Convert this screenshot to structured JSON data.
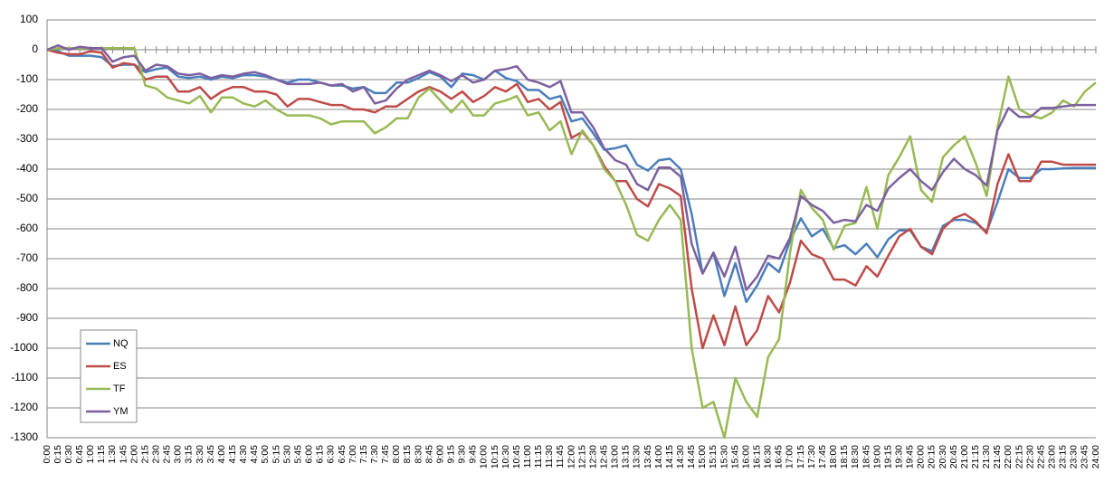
{
  "chart_data": {
    "type": "line",
    "categories": [
      "0:00",
      "0:15",
      "0:30",
      "0:45",
      "1:00",
      "1:15",
      "1:30",
      "1:45",
      "2:00",
      "2:15",
      "2:30",
      "2:45",
      "3:00",
      "3:15",
      "3:30",
      "3:45",
      "4:00",
      "4:15",
      "4:30",
      "4:45",
      "5:00",
      "5:15",
      "5:30",
      "5:45",
      "6:00",
      "6:15",
      "6:30",
      "6:45",
      "7:00",
      "7:15",
      "7:30",
      "7:45",
      "8:00",
      "8:15",
      "8:30",
      "8:45",
      "9:00",
      "9:15",
      "9:30",
      "9:45",
      "10:00",
      "10:15",
      "10:30",
      "10:45",
      "11:00",
      "11:15",
      "11:30",
      "11:45",
      "12:00",
      "12:15",
      "12:30",
      "12:45",
      "13:00",
      "13:15",
      "13:30",
      "13:45",
      "14:00",
      "14:15",
      "14:30",
      "14:45",
      "15:00",
      "15:15",
      "15:30",
      "15:45",
      "16:00",
      "16:15",
      "16:30",
      "16:45",
      "17:00",
      "17:15",
      "17:30",
      "17:45",
      "18:00",
      "18:15",
      "18:30",
      "18:45",
      "19:00",
      "19:15",
      "19:30",
      "19:45",
      "20:00",
      "20:15",
      "20:30",
      "20:45",
      "21:00",
      "21:15",
      "21:30",
      "21:45",
      "22:00",
      "22:15",
      "22:30",
      "22:45",
      "23:00",
      "23:15",
      "23:30",
      "23:45",
      "24:00"
    ],
    "series": [
      {
        "name": "NQ",
        "color": "#4a7ebb",
        "values": [
          0,
          -5,
          -20,
          -20,
          -20,
          -25,
          -55,
          -50,
          -50,
          -75,
          -65,
          -60,
          -90,
          -95,
          -90,
          -100,
          -90,
          -95,
          -85,
          -85,
          -90,
          -100,
          -110,
          -100,
          -100,
          -110,
          -120,
          -120,
          -130,
          -125,
          -145,
          -145,
          -110,
          -110,
          -95,
          -75,
          -90,
          -125,
          -80,
          -85,
          -100,
          -70,
          -95,
          -105,
          -135,
          -135,
          -165,
          -155,
          -240,
          -230,
          -280,
          -335,
          -330,
          -320,
          -385,
          -405,
          -370,
          -365,
          -400,
          -550,
          -750,
          -680,
          -825,
          -715,
          -845,
          -790,
          -715,
          -745,
          -640,
          -565,
          -625,
          -600,
          -665,
          -655,
          -685,
          -650,
          -695,
          -635,
          -605,
          -605,
          -660,
          -675,
          -590,
          -570,
          -570,
          -580,
          -610,
          -510,
          -400,
          -430,
          -430,
          -400,
          -400,
          -398,
          -396,
          -396,
          -396
        ]
      },
      {
        "name": "ES",
        "color": "#be4b48",
        "values": [
          0,
          -10,
          -15,
          -15,
          -5,
          -10,
          -60,
          -45,
          -50,
          -100,
          -90,
          -90,
          -140,
          -140,
          -125,
          -165,
          -140,
          -125,
          -125,
          -140,
          -140,
          -150,
          -190,
          -165,
          -165,
          -175,
          -185,
          -185,
          -200,
          -200,
          -210,
          -190,
          -190,
          -165,
          -140,
          -125,
          -140,
          -165,
          -140,
          -175,
          -155,
          -125,
          -140,
          -115,
          -175,
          -165,
          -200,
          -175,
          -295,
          -275,
          -320,
          -390,
          -440,
          -440,
          -500,
          -525,
          -450,
          -465,
          -490,
          -800,
          -1000,
          -890,
          -990,
          -860,
          -990,
          -940,
          -825,
          -880,
          -780,
          -640,
          -685,
          -700,
          -770,
          -770,
          -790,
          -725,
          -760,
          -690,
          -625,
          -600,
          -660,
          -685,
          -600,
          -565,
          -550,
          -575,
          -615,
          -450,
          -350,
          -440,
          -440,
          -375,
          -375,
          -385,
          -385,
          -385,
          -385
        ]
      },
      {
        "name": "TF",
        "color": "#98b954",
        "values": [
          0,
          5,
          5,
          5,
          5,
          5,
          5,
          5,
          5,
          -120,
          -130,
          -160,
          -170,
          -180,
          -155,
          -210,
          -160,
          -160,
          -180,
          -190,
          -170,
          -200,
          -220,
          -220,
          -220,
          -230,
          -250,
          -240,
          -240,
          -240,
          -280,
          -260,
          -230,
          -230,
          -160,
          -130,
          -170,
          -210,
          -170,
          -220,
          -220,
          -180,
          -170,
          -155,
          -220,
          -210,
          -270,
          -240,
          -350,
          -270,
          -320,
          -400,
          -440,
          -520,
          -620,
          -640,
          -570,
          -520,
          -570,
          -1000,
          -1200,
          -1180,
          -1300,
          -1100,
          -1180,
          -1230,
          -1030,
          -970,
          -680,
          -470,
          -530,
          -570,
          -670,
          -590,
          -580,
          -460,
          -600,
          -420,
          -360,
          -290,
          -470,
          -510,
          -360,
          -320,
          -290,
          -380,
          -490,
          -260,
          -90,
          -200,
          -220,
          -230,
          -210,
          -170,
          -190,
          -140,
          -110
        ]
      },
      {
        "name": "YM",
        "color": "#7d60a0",
        "values": [
          0,
          15,
          0,
          10,
          5,
          5,
          -40,
          -25,
          -20,
          -70,
          -50,
          -55,
          -80,
          -85,
          -80,
          -95,
          -85,
          -90,
          -80,
          -75,
          -85,
          -100,
          -115,
          -115,
          -115,
          -110,
          -120,
          -115,
          -140,
          -125,
          -180,
          -170,
          -130,
          -100,
          -85,
          -70,
          -85,
          -105,
          -85,
          -110,
          -100,
          -70,
          -65,
          -55,
          -100,
          -110,
          -125,
          -105,
          -210,
          -210,
          -260,
          -330,
          -370,
          -385,
          -450,
          -470,
          -395,
          -395,
          -425,
          -650,
          -750,
          -680,
          -760,
          -660,
          -805,
          -760,
          -690,
          -700,
          -630,
          -490,
          -520,
          -540,
          -580,
          -570,
          -575,
          -520,
          -540,
          -465,
          -430,
          -400,
          -440,
          -470,
          -410,
          -365,
          -400,
          -420,
          -455,
          -270,
          -195,
          -225,
          -225,
          -195,
          -195,
          -190,
          -185,
          -185,
          -185
        ]
      }
    ],
    "ylim": [
      -1300,
      100
    ],
    "yticks": [
      100,
      0,
      -100,
      -200,
      -300,
      -400,
      -500,
      -600,
      -700,
      -800,
      -900,
      -1000,
      -1100,
      -1200,
      -1300
    ],
    "grid": true
  }
}
